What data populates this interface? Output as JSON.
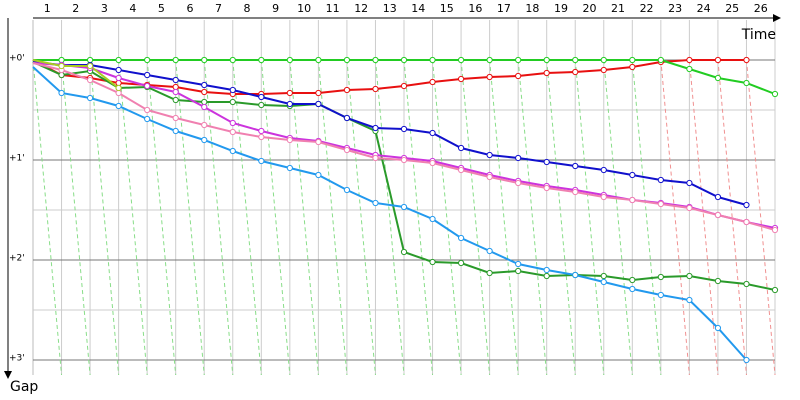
{
  "chart_data": {
    "type": "line",
    "x_label": "Time",
    "y_label": "Gap",
    "x": [
      0,
      1,
      2,
      3,
      4,
      5,
      6,
      7,
      8,
      9,
      10,
      11,
      12,
      13,
      14,
      15,
      16,
      17,
      18,
      19,
      20,
      21,
      22,
      23,
      24,
      25,
      26
    ],
    "xlim": [
      0,
      26
    ],
    "xticks": [
      1,
      2,
      3,
      4,
      5,
      6,
      7,
      8,
      9,
      10,
      11,
      12,
      13,
      14,
      15,
      16,
      17,
      18,
      19,
      20,
      21,
      22,
      23,
      24,
      25,
      26
    ],
    "ylim": [
      -0.4,
      3.15
    ],
    "yticks": [
      {
        "value": 0,
        "label": "+0'"
      },
      {
        "value": 1,
        "label": "+1'"
      },
      {
        "value": 2,
        "label": "+2'"
      },
      {
        "value": 3,
        "label": "+3'"
      }
    ],
    "minor_yticks": [
      0.5,
      1.5,
      2.5
    ],
    "grid": true,
    "series": [
      {
        "color": "#e81010",
        "values": [
          0,
          0.15,
          0.18,
          0.23,
          0.25,
          0.27,
          0.32,
          0.34,
          0.34,
          0.33,
          0.33,
          0.3,
          0.29,
          0.26,
          0.22,
          0.19,
          0.17,
          0.16,
          0.13,
          0.12,
          0.1,
          0.07,
          0.02,
          0,
          0,
          0,
          null
        ]
      },
      {
        "color": "#22cc22",
        "values": [
          0,
          0,
          0,
          0,
          0,
          0,
          0,
          0,
          0,
          0,
          0,
          0,
          0,
          0,
          0,
          0,
          0,
          0,
          0,
          0,
          0,
          0,
          0,
          0.09,
          0.18,
          0.23,
          0.34
        ]
      },
      {
        "color": "#2a9a2a",
        "values": [
          0.02,
          0.15,
          0.11,
          0.28,
          0.27,
          0.4,
          0.42,
          0.42,
          0.45,
          0.46,
          0.44,
          0.58,
          0.71,
          1.92,
          2.02,
          2.03,
          2.13,
          2.11,
          2.16,
          2.15,
          2.16,
          2.2,
          2.17,
          2.16,
          2.21,
          2.24,
          2.3
        ]
      },
      {
        "color": "#1010cc",
        "values": [
          0.02,
          0.05,
          0.05,
          0.1,
          0.15,
          0.2,
          0.25,
          0.3,
          0.37,
          0.44,
          0.44,
          0.58,
          0.68,
          0.69,
          0.73,
          0.88,
          0.95,
          0.98,
          1.02,
          1.06,
          1.1,
          1.15,
          1.2,
          1.23,
          1.37,
          1.45,
          null
        ]
      },
      {
        "color": "#2299ee",
        "values": [
          0.07,
          0.33,
          0.38,
          0.46,
          0.59,
          0.71,
          0.8,
          0.91,
          1.01,
          1.08,
          1.15,
          1.3,
          1.43,
          1.47,
          1.59,
          1.78,
          1.91,
          2.04,
          2.1,
          2.15,
          2.22,
          2.29,
          2.35,
          2.4,
          2.68,
          3.0,
          null
        ]
      },
      {
        "color": "#cc33dd",
        "values": [
          0.03,
          0.05,
          0.08,
          0.18,
          0.26,
          0.32,
          0.47,
          0.63,
          0.71,
          0.78,
          0.81,
          0.88,
          0.95,
          0.98,
          1.01,
          1.08,
          1.15,
          1.21,
          1.26,
          1.3,
          1.35,
          1.4,
          1.43,
          1.47,
          1.55,
          1.62,
          1.68
        ]
      },
      {
        "color": "#f080b0",
        "values": [
          0.03,
          0.1,
          0.2,
          0.33,
          0.5,
          0.58,
          0.65,
          0.72,
          0.77,
          0.8,
          0.82,
          0.9,
          0.98,
          1.0,
          1.03,
          1.1,
          1.17,
          1.23,
          1.28,
          1.32,
          1.37,
          1.4,
          1.44,
          1.48,
          1.55,
          1.62,
          1.7
        ]
      },
      {
        "color": "#aacc22",
        "values": [
          0,
          0.06,
          0.06,
          0.28,
          null,
          null,
          null,
          null,
          null,
          null,
          null,
          null,
          null,
          null,
          null,
          null,
          null,
          null,
          null,
          null,
          null,
          null,
          null,
          null,
          null,
          null,
          null
        ]
      }
    ]
  }
}
